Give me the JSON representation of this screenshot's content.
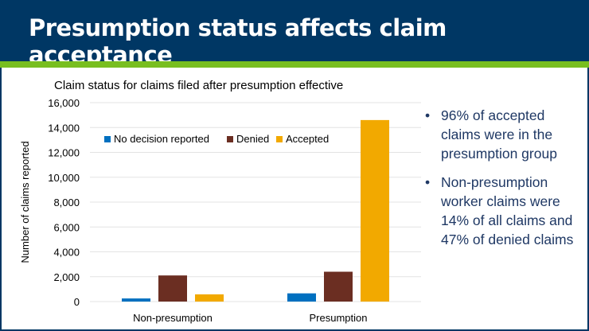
{
  "slide": {
    "title": "Presumption status affects claim acceptance"
  },
  "bullets": [
    {
      "icon": "bullet-dot-icon",
      "text": "96% of accepted claims were in the presumption group"
    },
    {
      "icon": "bullet-dot-icon",
      "text": "Non-presumption worker claims were 14% of all claims and 47% of denied claims"
    }
  ],
  "colors": {
    "navy": "#003764",
    "green": "#78be20",
    "text": "#1f3864"
  },
  "chart_data": {
    "type": "bar",
    "title": "Claim status for claims filed after presumption effective",
    "xlabel": "",
    "ylabel": "Number of claims reported",
    "ylim": [
      0,
      16000
    ],
    "yticks": [
      0,
      2000,
      4000,
      6000,
      8000,
      10000,
      12000,
      14000,
      16000
    ],
    "ytick_labels": [
      "0",
      "2,000",
      "4,000",
      "6,000",
      "8,000",
      "10,000",
      "12,000",
      "14,000",
      "16,000"
    ],
    "grid": true,
    "legend_position": "top-left",
    "categories": [
      "Non-presumption",
      "Presumption"
    ],
    "series": [
      {
        "name": "No decision reported",
        "color": "#0070c0",
        "values": [
          250,
          660
        ]
      },
      {
        "name": "Denied",
        "color": "#6b2e22",
        "values": [
          2100,
          2400
        ]
      },
      {
        "name": "Accepted",
        "color": "#f2a900",
        "values": [
          580,
          14600
        ]
      }
    ]
  }
}
